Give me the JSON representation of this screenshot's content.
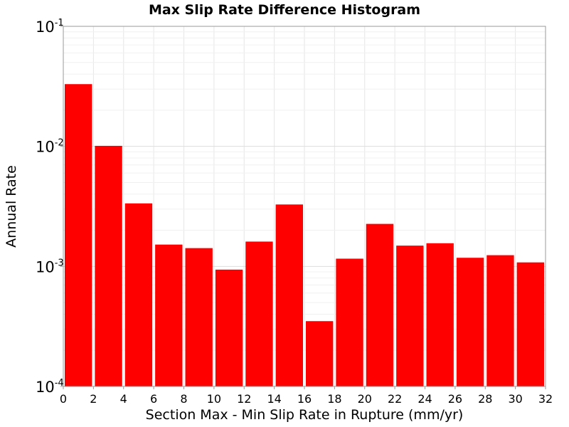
{
  "chart_data": {
    "type": "bar",
    "title": "Max Slip Rate Difference Histogram",
    "xlabel": "Section Max - Min Slip Rate in Rupture (mm/yr)",
    "ylabel": "Annual Rate",
    "yscale": "log",
    "xlim": [
      0,
      32
    ],
    "ylim": [
      0.0001,
      0.1
    ],
    "xticks": [
      "0",
      "2",
      "4",
      "6",
      "8",
      "10",
      "12",
      "14",
      "16",
      "18",
      "20",
      "22",
      "24",
      "26",
      "28",
      "30",
      "32"
    ],
    "yticks": [
      {
        "base": "10",
        "exp": "-4"
      },
      {
        "base": "10",
        "exp": "-3"
      },
      {
        "base": "10",
        "exp": "-2"
      },
      {
        "base": "10",
        "exp": "-1"
      }
    ],
    "bin_width": 2,
    "x": [
      1,
      3,
      5,
      7,
      9,
      11,
      13,
      15,
      17,
      19,
      21,
      23,
      25,
      27,
      29,
      31
    ],
    "values": [
      0.033,
      0.0101,
      0.00335,
      0.00152,
      0.00142,
      0.00094,
      0.00161,
      0.00328,
      0.00035,
      0.00116,
      0.00226,
      0.00149,
      0.00156,
      0.00118,
      0.00124,
      0.00108
    ],
    "bar_color": "#ff0000",
    "grid": true,
    "legend": "none"
  }
}
